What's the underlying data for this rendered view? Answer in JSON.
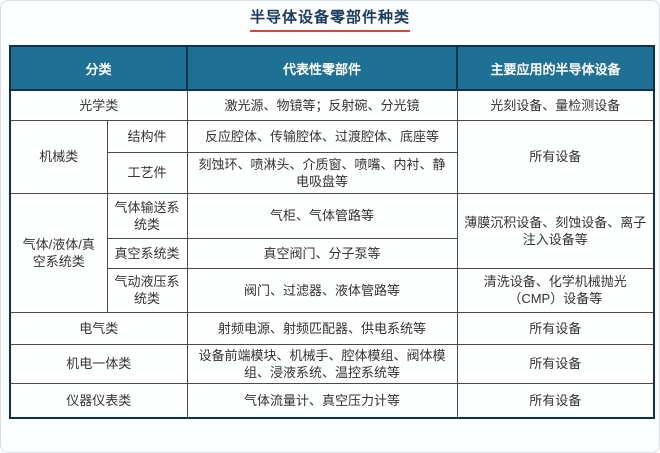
{
  "page": {
    "title": "半导体设备零部件种类"
  },
  "colors": {
    "header_bg": "#1f7095",
    "header_text": "#ffffff",
    "title_text": "#1c3a5e",
    "title_underline": "#e34234",
    "outer_border": "#0e2f4e",
    "inner_border": "#4a4a4a",
    "body_text": "#333333"
  },
  "table": {
    "headers": {
      "category": "分类",
      "parts": "代表性零部件",
      "devices": "主要应用的半导体设备"
    },
    "rows": {
      "optical": {
        "category": "光学类",
        "parts": "激光源、物镜等；反射碗、分光镜",
        "devices": "光刻设备、量检测设备"
      },
      "mechanical": {
        "category": "机械类",
        "devices": "所有设备",
        "sub": [
          {
            "name": "结构件",
            "parts": "反应腔体、传输腔体、过渡腔体、底座等"
          },
          {
            "name": "工艺件",
            "parts": "刻蚀环、喷淋头、介质窗、喷嘴、内衬、静电吸盘等"
          }
        ]
      },
      "fluid": {
        "category": "气体/液体/真空系统类",
        "sub": [
          {
            "name": "气体输送系统类",
            "parts": "气柜、气体管路等",
            "devices": "薄膜沉积设备、刻蚀设备、离子注入设备等"
          },
          {
            "name": "真空系统类",
            "parts": "真空阀门、分子泵等"
          },
          {
            "name": "气动液压系统类",
            "parts": "阀门、过滤器、液体管路等",
            "devices": "清洗设备、化学机械抛光（CMP）设备等"
          }
        ]
      },
      "electrical": {
        "category": "电气类",
        "parts": "射频电源、射频匹配器、供电系统等",
        "devices": "所有设备"
      },
      "electromechanical": {
        "category": "机电一体类",
        "parts": "设备前端模块、机械手、腔体模组、阀体模组、浸液系统、温控系统等",
        "devices": "所有设备"
      },
      "instrumentation": {
        "category": "仪器仪表类",
        "parts": "气体流量计、真空压力计等",
        "devices": "所有设备"
      }
    }
  }
}
